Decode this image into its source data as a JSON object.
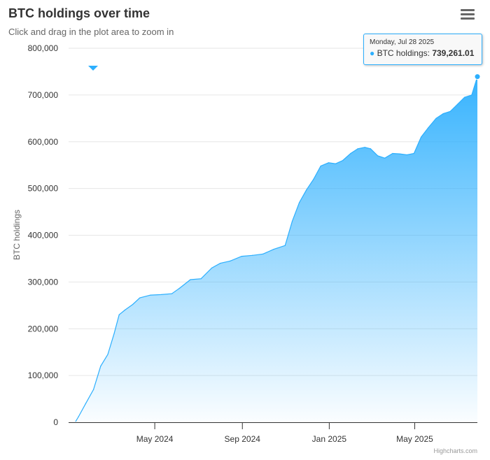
{
  "header": {
    "title": "BTC holdings over time",
    "subtitle": "Click and drag in the plot area to zoom in"
  },
  "menu_icon": "hamburger-menu-icon",
  "credits": "Highcharts.com",
  "accent_color": "#2caffe",
  "tooltip": {
    "date": "Monday, Jul 28 2025",
    "series_label": "BTC holdings:",
    "value": "739,261.01"
  },
  "chart_data": {
    "type": "area",
    "title": "BTC holdings over time",
    "subtitle": "Click and drag in the plot area to zoom in",
    "xlabel": "",
    "ylabel": "BTC holdings",
    "ylim": [
      0,
      800000
    ],
    "xlim": [
      "2024-01-01",
      "2025-07-28"
    ],
    "yticks": [
      0,
      100000,
      200000,
      300000,
      400000,
      500000,
      600000,
      700000,
      800000
    ],
    "ytick_labels": [
      "0",
      "100,000",
      "200,000",
      "300,000",
      "400,000",
      "500,000",
      "600,000",
      "700,000",
      "800,000"
    ],
    "xticks": [
      "2024-05-01",
      "2024-09-01",
      "2025-01-01",
      "2025-05-01"
    ],
    "xtick_labels": [
      "May 2024",
      "Sep 2024",
      "Jan 2025",
      "May 2025"
    ],
    "grid": true,
    "legend": "none",
    "series": [
      {
        "name": "BTC holdings",
        "color": "#2caffe",
        "x": [
          "2024-01-11",
          "2024-01-15",
          "2024-01-25",
          "2024-02-05",
          "2024-02-15",
          "2024-02-25",
          "2024-03-05",
          "2024-03-12",
          "2024-03-20",
          "2024-03-31",
          "2024-04-10",
          "2024-04-25",
          "2024-05-10",
          "2024-05-25",
          "2024-06-05",
          "2024-06-20",
          "2024-07-05",
          "2024-07-20",
          "2024-08-01",
          "2024-08-15",
          "2024-08-31",
          "2024-09-15",
          "2024-09-30",
          "2024-10-15",
          "2024-10-31",
          "2024-11-10",
          "2024-11-20",
          "2024-11-30",
          "2024-12-10",
          "2024-12-20",
          "2024-12-31",
          "2025-01-10",
          "2025-01-20",
          "2025-01-31",
          "2025-02-10",
          "2025-02-20",
          "2025-02-28",
          "2025-03-10",
          "2025-03-20",
          "2025-03-31",
          "2025-04-10",
          "2025-04-20",
          "2025-04-30",
          "2025-05-10",
          "2025-05-20",
          "2025-05-31",
          "2025-06-10",
          "2025-06-20",
          "2025-06-30",
          "2025-07-10",
          "2025-07-20",
          "2025-07-28"
        ],
        "values": [
          2000,
          12000,
          40000,
          70000,
          120000,
          145000,
          190000,
          230000,
          240000,
          252000,
          266000,
          272000,
          273000,
          275000,
          287000,
          305000,
          307000,
          330000,
          340000,
          345000,
          355000,
          357000,
          360000,
          370000,
          378000,
          430000,
          470000,
          497000,
          520000,
          548000,
          555000,
          553000,
          560000,
          575000,
          585000,
          588000,
          585000,
          570000,
          565000,
          575000,
          574000,
          572000,
          575000,
          610000,
          630000,
          650000,
          660000,
          665000,
          680000,
          695000,
          700000,
          739261
        ]
      }
    ]
  }
}
